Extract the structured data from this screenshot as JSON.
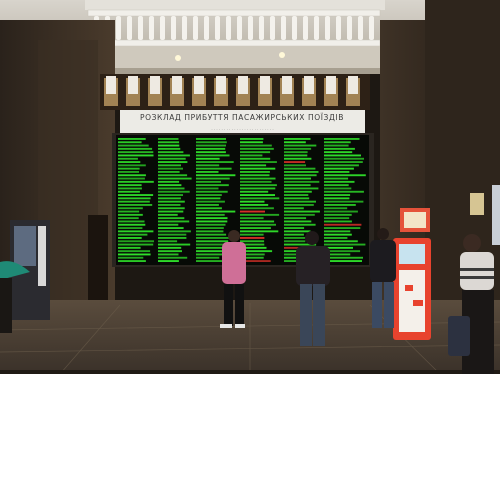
{
  "photo": {
    "sign_title": "РОЗКЛАД ПРИБУТТЯ ПАСАЖИРСЬКИХ ПОЇЗДІВ",
    "sign_subtitle": "· · · · · · · · · · · · · · · · · · · · · · · · ·",
    "board_colors": {
      "text": "#2fe02a",
      "highlight": "#e0322a",
      "background": "#070a06"
    }
  }
}
